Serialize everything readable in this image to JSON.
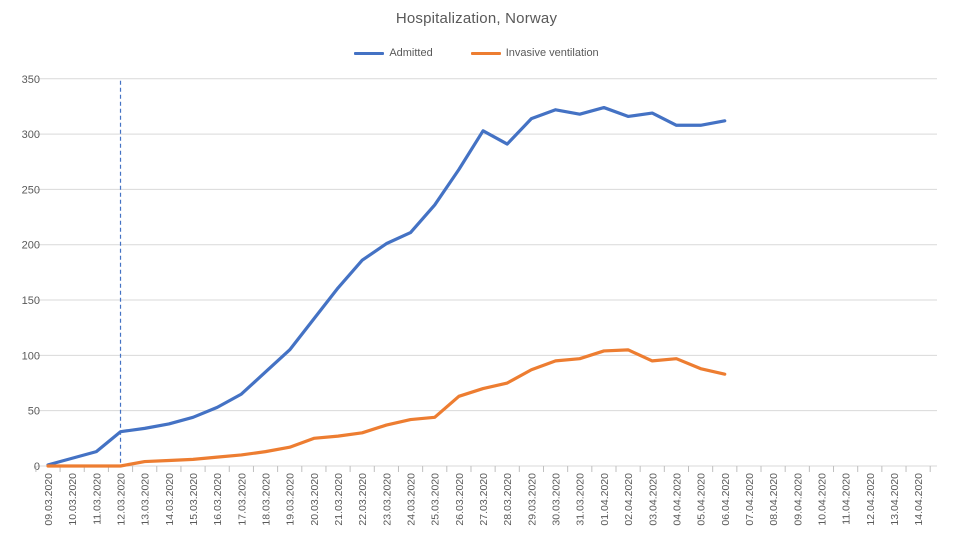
{
  "title": "Hospitalization, Norway",
  "colors": {
    "admitted": "#4472C4",
    "ventilation": "#ED7D31",
    "gridline": "#D9D9D9",
    "tick": "#BFBFBF",
    "label": "#595959",
    "reference_line": "#4472C4",
    "background": "#FFFFFF"
  },
  "chart_data": {
    "type": "line",
    "title": "Hospitalization, Norway",
    "xlabel": "",
    "ylabel": "",
    "ylim": [
      0,
      350
    ],
    "ytick_interval": 50,
    "yticks": [
      0,
      50,
      100,
      150,
      200,
      250,
      300,
      350
    ],
    "grid": "horizontal",
    "legend_position": "top",
    "categories": [
      "09.03.2020",
      "10.03.2020",
      "11.03.2020",
      "12.03.2020",
      "13.03.2020",
      "14.03.2020",
      "15.03.2020",
      "16.03.2020",
      "17.03.2020",
      "18.03.2020",
      "19.03.2020",
      "20.03.2020",
      "21.03.2020",
      "22.03.2020",
      "23.03.2020",
      "24.03.2020",
      "25.03.2020",
      "26.03.2020",
      "27.03.2020",
      "28.03.2020",
      "29.03.2020",
      "30.03.2020",
      "31.03.2020",
      "01.04.2020",
      "02.04.2020",
      "03.04.2020",
      "04.04.2020",
      "05.04.2020",
      "06.04.2020",
      "07.04.2020",
      "08.04.2020",
      "09.04.2020",
      "10.04.2020",
      "11.04.2020",
      "12.04.2020",
      "13.04.2020",
      "14.04.2020"
    ],
    "series": [
      {
        "name": "Admitted",
        "color": "#4472C4",
        "values": [
          1,
          7,
          13,
          31,
          34,
          38,
          44,
          53,
          65,
          85,
          105,
          133,
          161,
          186,
          201,
          211,
          236,
          268,
          303,
          291,
          314,
          322,
          318,
          324,
          316,
          319,
          308,
          308,
          312
        ]
      },
      {
        "name": "Invasive ventilation",
        "color": "#ED7D31",
        "values": [
          0,
          0,
          0,
          0,
          4,
          5,
          6,
          8,
          10,
          13,
          17,
          25,
          27,
          30,
          37,
          42,
          44,
          63,
          70,
          75,
          87,
          95,
          97,
          104,
          105,
          95,
          97,
          88,
          83
        ]
      }
    ],
    "annotations": [
      {
        "type": "vline",
        "category": "12.03.2020",
        "style": "dashed",
        "color": "#4472C4"
      }
    ]
  }
}
